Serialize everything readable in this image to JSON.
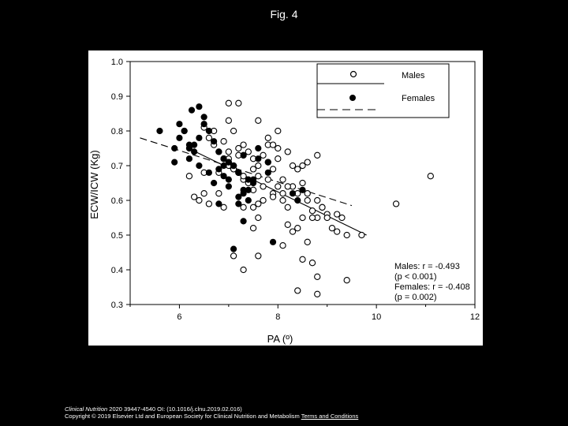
{
  "figure_title": "Fig. 4",
  "caption": {
    "journal": "Clinical Nutrition",
    "line1_rest": " 2020 39447-4540 OI: (10.1016/j.clnu.2019.02.016)",
    "line2": "Copyright © 2019 Elsevier Ltd and European Society for Clinical Nutrition and Metabolism",
    "terms_link": "Terms and Conditions"
  },
  "colors": {
    "background": "#000000",
    "panel": "#ffffff",
    "ink": "#000000"
  },
  "chart_data": {
    "type": "scatter",
    "xlabel": "PA (º)",
    "ylabel": "ECW/ICW (Kg)",
    "xlim": [
      5,
      12
    ],
    "ylim": [
      0.3,
      1.0
    ],
    "xticks": [
      "6",
      "8",
      "10",
      "12"
    ],
    "yticks": [
      "0.3",
      "0.4",
      "0.5",
      "0.6",
      "0.7",
      "0.8",
      "0.9",
      "1.0"
    ],
    "grid": false,
    "legend_position": "top-right",
    "legend": [
      {
        "name": "Males",
        "marker": "open-circle",
        "line": "solid"
      },
      {
        "name": "Females",
        "marker": "filled-circle",
        "line": "dashed"
      }
    ],
    "annotations": [
      "Males: r = -0.493",
      "(p < 0.001)",
      "Females: r = -0.408",
      "(p = 0.002)"
    ],
    "series": [
      {
        "name": "Males",
        "marker": "open",
        "fit": {
          "x": [
            6.3,
            9.8
          ],
          "y": [
            0.742,
            0.5
          ]
        },
        "x": [
          7.0,
          7.2,
          7.6,
          7.0,
          7.1,
          7.3,
          6.9,
          7.0,
          7.8,
          7.2,
          7.3,
          7.4,
          7.5,
          7.6,
          7.7,
          7.8,
          7.9,
          8.0,
          7.1,
          7.2,
          7.3,
          7.5,
          7.6,
          7.4,
          7.5,
          7.7,
          7.8,
          7.9,
          8.0,
          8.1,
          8.0,
          7.3,
          7.6,
          7.9,
          8.1,
          8.2,
          8.3,
          8.4,
          8.5,
          8.6,
          8.7,
          8.8,
          8.9,
          9.0,
          6.6,
          6.7,
          6.8,
          6.9,
          7.1,
          7.3,
          6.2,
          6.5,
          6.4,
          6.3,
          6.9,
          6.5,
          8.6,
          8.8,
          8.9,
          8.7,
          9.0,
          9.2,
          9.3,
          9.1,
          9.4,
          9.7,
          9.2,
          8.2,
          8.4,
          8.5,
          8.3,
          8.5,
          8.7,
          8.8,
          8.6,
          8.1,
          8.8,
          9.4,
          10.4,
          11.1,
          8.4,
          7.6,
          7.1,
          7.3,
          6.7,
          6.9,
          7.0,
          7.2,
          7.8,
          7.9,
          8.0,
          8.2,
          8.3,
          8.4,
          8.5,
          8.2,
          7.5,
          6.8,
          6.6,
          6.5,
          6.8,
          7.0,
          7.1,
          7.2,
          8.6,
          8.8,
          7.5,
          7.6,
          7.7,
          8.1
        ],
        "y": [
          0.88,
          0.88,
          0.83,
          0.83,
          0.8,
          0.76,
          0.72,
          0.7,
          0.78,
          0.75,
          0.73,
          0.74,
          0.72,
          0.7,
          0.73,
          0.71,
          0.69,
          0.72,
          0.69,
          0.68,
          0.66,
          0.69,
          0.67,
          0.65,
          0.63,
          0.64,
          0.66,
          0.62,
          0.64,
          0.62,
          0.75,
          0.58,
          0.59,
          0.61,
          0.6,
          0.58,
          0.64,
          0.62,
          0.65,
          0.6,
          0.57,
          0.55,
          0.58,
          0.56,
          0.78,
          0.76,
          0.74,
          0.72,
          0.7,
          0.67,
          0.67,
          0.68,
          0.6,
          0.61,
          0.58,
          0.62,
          0.62,
          0.6,
          0.58,
          0.55,
          0.55,
          0.56,
          0.55,
          0.52,
          0.5,
          0.5,
          0.51,
          0.53,
          0.52,
          0.55,
          0.51,
          0.43,
          0.42,
          0.38,
          0.48,
          0.47,
          0.33,
          0.37,
          0.59,
          0.67,
          0.34,
          0.44,
          0.44,
          0.4,
          0.8,
          0.77,
          0.74,
          0.73,
          0.76,
          0.76,
          0.8,
          0.74,
          0.7,
          0.69,
          0.7,
          0.64,
          0.52,
          0.62,
          0.59,
          0.81,
          0.68,
          0.72,
          0.7,
          0.68,
          0.71,
          0.73,
          0.58,
          0.55,
          0.6,
          0.66
        ]
      },
      {
        "name": "Females",
        "marker": "filled",
        "fit": {
          "x": [
            5.2,
            9.5
          ],
          "y": [
            0.78,
            0.585
          ]
        },
        "x": [
          5.6,
          5.9,
          6.0,
          6.1,
          6.2,
          6.25,
          6.4,
          6.5,
          6.3,
          6.2,
          6.4,
          6.6,
          6.7,
          6.8,
          6.9,
          7.0,
          7.1,
          7.2,
          6.9,
          6.8,
          7.0,
          7.3,
          7.2,
          7.4,
          7.5,
          7.3,
          7.1,
          7.2,
          7.4,
          7.6,
          7.8,
          6.6,
          6.5,
          6.4,
          6.7,
          7.0,
          6.0,
          6.2,
          6.1,
          6.3,
          5.9,
          7.3,
          7.5,
          7.9,
          8.3,
          8.4,
          8.5,
          7.0,
          7.3,
          7.6,
          6.8,
          6.9,
          7.8,
          7.4
        ],
        "y": [
          0.8,
          0.71,
          0.82,
          0.8,
          0.76,
          0.86,
          0.87,
          0.84,
          0.74,
          0.72,
          0.7,
          0.68,
          0.65,
          0.59,
          0.72,
          0.71,
          0.7,
          0.68,
          0.67,
          0.69,
          0.64,
          0.62,
          0.61,
          0.6,
          0.65,
          0.54,
          0.46,
          0.59,
          0.66,
          0.72,
          0.71,
          0.8,
          0.82,
          0.78,
          0.77,
          0.71,
          0.78,
          0.75,
          0.8,
          0.76,
          0.75,
          0.63,
          0.66,
          0.48,
          0.62,
          0.6,
          0.63,
          0.66,
          0.73,
          0.75,
          0.74,
          0.7,
          0.68,
          0.63
        ]
      }
    ]
  }
}
